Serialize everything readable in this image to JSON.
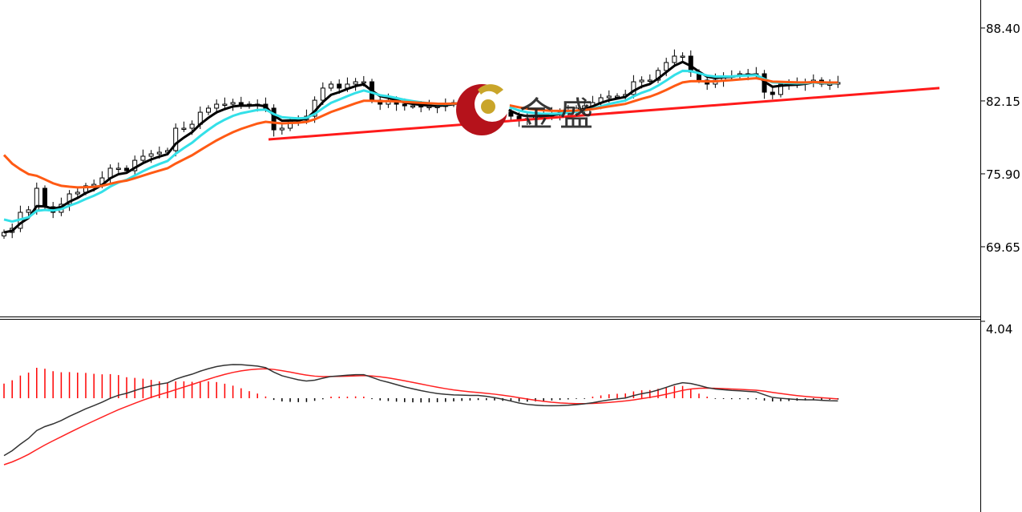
{
  "chart_data": {
    "type": "candlestick",
    "price_axis": {
      "ticks": [
        "88.40",
        "82.15",
        "75.90",
        "69.65"
      ],
      "ylim": [
        61.2,
        90.8
      ]
    },
    "close": [
      70.88,
      71.23,
      72.6,
      72.81,
      74.66,
      73.08,
      72.6,
      73.29,
      74.18,
      74.32,
      74.87,
      75.0,
      75.55,
      76.38,
      76.38,
      76.17,
      77.06,
      77.41,
      77.61,
      77.75,
      77.89,
      79.81,
      79.81,
      80.15,
      81.18,
      81.53,
      81.87,
      81.87,
      82.01,
      81.87,
      81.73,
      81.87,
      81.53,
      79.67,
      79.81,
      80.5,
      80.5,
      80.84,
      82.21,
      83.25,
      83.59,
      83.25,
      83.59,
      83.79,
      83.79,
      82.21,
      81.87,
      82.21,
      81.87,
      81.73,
      81.73,
      81.67,
      81.67,
      81.67,
      81.87,
      82.01,
      82.21,
      82.21,
      82.42,
      81.87,
      81.53,
      81.18,
      80.84,
      80.5,
      80.64,
      80.84,
      80.84,
      81.05,
      81.18,
      81.32,
      81.53,
      81.73,
      82.01,
      82.42,
      82.56,
      82.56,
      82.7,
      83.79,
      83.93,
      83.93,
      84.76,
      85.44,
      85.99,
      85.99,
      84.62,
      83.93,
      83.59,
      83.93,
      84.28,
      84.28,
      84.48,
      84.41,
      84.48,
      82.9,
      82.7,
      83.59,
      83.59,
      83.59,
      83.73,
      83.93,
      83.59,
      83.59,
      83.73
    ],
    "moving_averages": [
      {
        "color": "#000000"
      },
      {
        "color": "#33e0e8"
      },
      {
        "color": "#ff5a14"
      }
    ],
    "trendline": {
      "color": "#ff1a1a",
      "from_price": 78.85,
      "to_price": 83.25
    },
    "macd_panel": {
      "axis_label": "4.04",
      "signal_color": "#ff2020",
      "main_color": "#333333",
      "hist_up_color": "#ff0000",
      "hist_down_color": "#000000"
    }
  },
  "watermark": {
    "text": "金盛",
    "circle_color": "#b5121b",
    "ball_color": "#c9a52a"
  }
}
